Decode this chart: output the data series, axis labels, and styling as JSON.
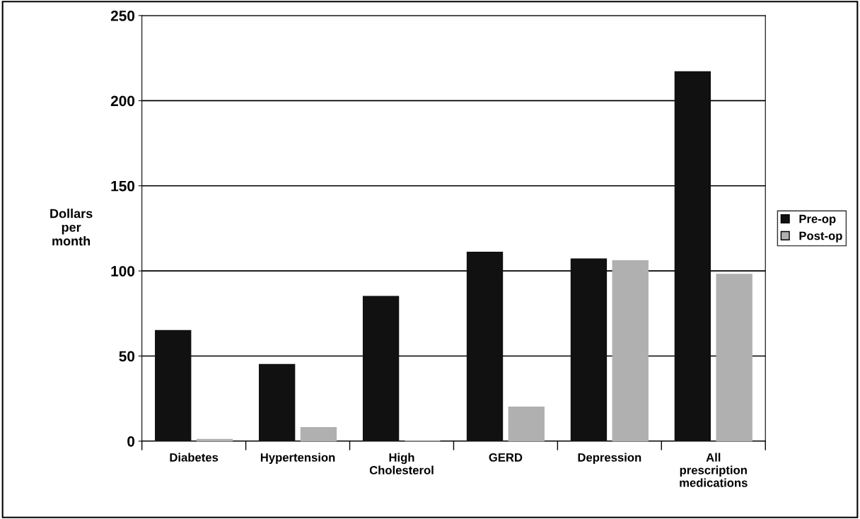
{
  "chart_data": {
    "type": "bar",
    "ylabel": "Dollars\nper\nmonth",
    "categories": [
      "Diabetes",
      "Hypertension",
      "High\nCholesterol",
      "GERD",
      "Depression",
      "All\nprescription\nmedications"
    ],
    "series": [
      {
        "name": "Pre-op",
        "color": "#111111",
        "values": [
          65,
          45,
          85,
          111,
          107,
          217
        ]
      },
      {
        "name": "Post-op",
        "color": "#b0b0b0",
        "values": [
          1,
          8,
          0,
          20,
          106,
          98
        ]
      }
    ],
    "ylim": [
      0,
      250
    ],
    "yticks": [
      0,
      50,
      100,
      150,
      200,
      250
    ],
    "grid": "y",
    "legend": "right"
  }
}
